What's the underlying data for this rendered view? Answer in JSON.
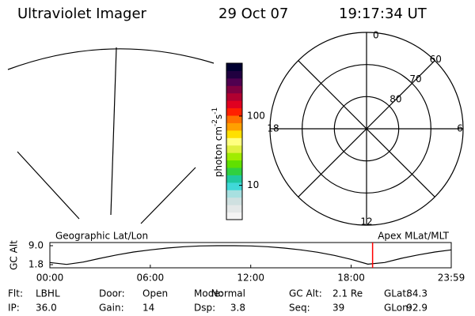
{
  "header": {
    "instrument": "Ultraviolet Imager",
    "date": "29 Oct 07",
    "time": "19:17:34 UT"
  },
  "colorbar": {
    "label": [
      "photon cm",
      "-2",
      "s",
      "-1"
    ],
    "log": true,
    "range": [
      3.2,
      580
    ],
    "ticks": [
      10,
      100
    ],
    "colors": [
      "#f4f4f4",
      "#e4e8e8",
      "#cfe0e0",
      "#a8e0e0",
      "#40d8d8",
      "#20c8a0",
      "#30d040",
      "#60e000",
      "#a0ec00",
      "#e0f040",
      "#ffff80",
      "#ffe000",
      "#ffa000",
      "#ff7000",
      "#ff2000",
      "#e00020",
      "#b00030",
      "#800040",
      "#500050",
      "#200040",
      "#000030"
    ]
  },
  "polar": {
    "mlt_labels": [
      12,
      6,
      18,
      0
    ],
    "lat_labels": [
      80,
      70,
      60
    ]
  },
  "chart_data": {
    "type": "line",
    "ylabel": "GC Alt",
    "left_label": "Geographic Lat/Lon",
    "right_label": "Apex MLat/MLT",
    "x": [
      0,
      1,
      2,
      3,
      4,
      5,
      6,
      7,
      8,
      9,
      10,
      11,
      12,
      13,
      14,
      15,
      16,
      17,
      18,
      19,
      20,
      21,
      22,
      23,
      23.98
    ],
    "values": [
      2.6,
      1.9,
      2.8,
      4.2,
      5.5,
      6.6,
      7.4,
      8.1,
      8.6,
      8.9,
      9.0,
      9.0,
      8.9,
      8.6,
      8.1,
      7.4,
      6.5,
      5.3,
      3.8,
      2.0,
      2.6,
      4.2,
      5.5,
      6.6,
      7.4
    ],
    "color": "#000000",
    "xlim": [
      0,
      23.98
    ],
    "ylim": [
      0.6,
      10.2
    ],
    "xticks": [
      {
        "value": 0,
        "label": "00:00"
      },
      {
        "value": 6,
        "label": "06:00"
      },
      {
        "value": 12,
        "label": "12:00"
      },
      {
        "value": 18,
        "label": "18:00"
      },
      {
        "value": 23.98,
        "label": "23:59"
      }
    ],
    "yticks": [
      {
        "value": 9.0,
        "label": "9.0"
      },
      {
        "value": 1.8,
        "label": "1.8"
      }
    ],
    "marker": {
      "x": 19.28,
      "color": "#ff0000"
    }
  },
  "footer": [
    [
      [
        "Flt:",
        "LBHL"
      ],
      [
        "Door:",
        "Open"
      ],
      [
        "Mode:",
        "Normal"
      ],
      [
        "GC Alt:",
        "2.1 Re"
      ],
      [
        "GLat:",
        "84.3"
      ]
    ],
    [
      [
        "IP:",
        "36.0"
      ],
      [
        "Gain:",
        "14"
      ],
      [
        "Dsp:",
        "3.8"
      ],
      [
        "Seq:",
        "39"
      ],
      [
        "GLon:",
        "92.9"
      ]
    ]
  ]
}
